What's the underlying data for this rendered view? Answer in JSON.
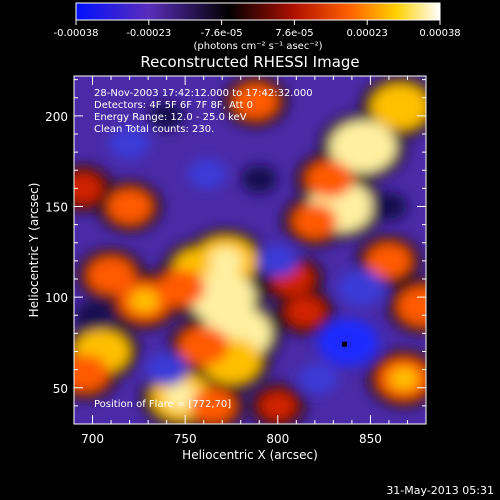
{
  "chart_data": {
    "type": "heatmap",
    "title": "Reconstructed RHESSI Image",
    "xlabel": "Heliocentric X (arcsec)",
    "ylabel": "Heliocentric Y (arcsec)",
    "xlim": [
      690,
      880
    ],
    "ylim": [
      30,
      222
    ],
    "x_ticks": [
      700,
      750,
      800,
      850
    ],
    "y_ticks": [
      50,
      100,
      150,
      200
    ],
    "colorbar": {
      "ticks": [
        "-0.00038",
        "-0.00023",
        "-7.6e-05",
        "7.6e-05",
        "0.00023",
        "0.00038"
      ],
      "range": [
        -0.00038,
        0.00038
      ],
      "label": "(photons cm⁻² s⁻¹ asec⁻²)",
      "colors": [
        "#0010ff",
        "#5a2dbb",
        "#000000",
        "#b01000",
        "#ff6000",
        "#ffd000",
        "#ffffff"
      ]
    },
    "annotations": [
      "28-Nov-2003 17:42:12.000 to 17:42:32.000",
      "Detectors: 4F 5F 6F 7F 8F, Att 0",
      "Energy Range: 12.0 - 25.0 keV",
      "Clean    Total counts: 230."
    ],
    "flare_position_label": "Position of Flare = [772,70]",
    "blobs": [
      {
        "x": 846,
        "y": 183,
        "value": 0.00034
      },
      {
        "x": 866,
        "y": 205,
        "value": 0.00028
      },
      {
        "x": 834,
        "y": 150,
        "value": 0.00033
      },
      {
        "x": 828,
        "y": 165,
        "value": 0.0002
      },
      {
        "x": 820,
        "y": 142,
        "value": 0.00018
      },
      {
        "x": 758,
        "y": 115,
        "value": 0.00025
      },
      {
        "x": 772,
        "y": 120,
        "value": 0.0003
      },
      {
        "x": 770,
        "y": 100,
        "value": 0.00034
      },
      {
        "x": 748,
        "y": 105,
        "value": 0.0002
      },
      {
        "x": 728,
        "y": 98,
        "value": 0.00024
      },
      {
        "x": 710,
        "y": 112,
        "value": 0.0002
      },
      {
        "x": 778,
        "y": 80,
        "value": 0.00036
      },
      {
        "x": 775,
        "y": 65,
        "value": 0.00028
      },
      {
        "x": 760,
        "y": 73,
        "value": 0.00022
      },
      {
        "x": 748,
        "y": 45,
        "value": 0.0003
      },
      {
        "x": 765,
        "y": 40,
        "value": 0.00018
      },
      {
        "x": 705,
        "y": 70,
        "value": 0.00026
      },
      {
        "x": 696,
        "y": 58,
        "value": 0.0002
      },
      {
        "x": 720,
        "y": 150,
        "value": 0.00018
      },
      {
        "x": 788,
        "y": 208,
        "value": 0.00018
      },
      {
        "x": 815,
        "y": 92,
        "value": 0.00014
      },
      {
        "x": 808,
        "y": 110,
        "value": 0.00016
      },
      {
        "x": 868,
        "y": 55,
        "value": 0.00024
      },
      {
        "x": 860,
        "y": 120,
        "value": 0.00018
      },
      {
        "x": 878,
        "y": 95,
        "value": 0.00022
      },
      {
        "x": 695,
        "y": 160,
        "value": 0.00014
      },
      {
        "x": 800,
        "y": 40,
        "value": 0.00012
      },
      {
        "x": 740,
        "y": 200,
        "value": -0.00012
      },
      {
        "x": 720,
        "y": 185,
        "value": -0.00016
      },
      {
        "x": 845,
        "y": 105,
        "value": -0.0002
      },
      {
        "x": 838,
        "y": 75,
        "value": -0.0003
      },
      {
        "x": 790,
        "y": 165,
        "value": -0.00012
      },
      {
        "x": 762,
        "y": 168,
        "value": -0.00014
      },
      {
        "x": 740,
        "y": 60,
        "value": -0.00016
      },
      {
        "x": 700,
        "y": 90,
        "value": -0.00012
      },
      {
        "x": 800,
        "y": 120,
        "value": -0.00015
      },
      {
        "x": 860,
        "y": 150,
        "value": -0.00012
      },
      {
        "x": 822,
        "y": 55,
        "value": -0.00014
      }
    ],
    "marker": {
      "x": 836,
      "y": 74
    }
  },
  "footer": {
    "date": "31-May-2013 05:31"
  }
}
